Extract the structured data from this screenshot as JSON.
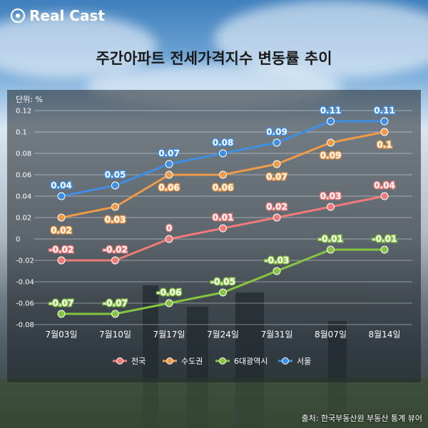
{
  "brand": {
    "name": "Real Cast"
  },
  "colors": {
    "전국": "#ef7a7a",
    "수도권": "#ee9a48",
    "6대광역시": "#86c53f",
    "서울": "#3f8ee6"
  },
  "chart_data": {
    "type": "line",
    "title": "주간아파트 전세가격지수 변동률 추이",
    "unit_label": "단위: %",
    "source": "출처: 한국부동산원 부동산 통계 뷰어",
    "categories": [
      "7월03일",
      "7월10일",
      "7월17일",
      "7월24일",
      "7월31일",
      "8월07일",
      "8월14일"
    ],
    "ylim": [
      -0.08,
      0.12
    ],
    "yticks": [
      "0.12",
      "0.1",
      "0.08",
      "0.06",
      "0.04",
      "0.02",
      "0",
      "-0.02",
      "-0.04",
      "-0.06",
      "-0.08"
    ],
    "ytick_values": [
      0.12,
      0.1,
      0.08,
      0.06,
      0.04,
      0.02,
      0,
      -0.02,
      -0.04,
      -0.06,
      -0.08
    ],
    "legend": [
      "전국",
      "수도권",
      "6대광역시",
      "서울"
    ],
    "series": [
      {
        "name": "전국",
        "values": [
          -0.02,
          -0.02,
          0,
          0.01,
          0.02,
          0.03,
          0.04
        ],
        "labels": [
          "-0.02",
          "-0.02",
          "0",
          "0.01",
          "0.02",
          "0.03",
          "0.04"
        ],
        "label_pos": "above"
      },
      {
        "name": "수도권",
        "values": [
          0.02,
          0.03,
          0.06,
          0.06,
          0.07,
          0.09,
          0.1
        ],
        "labels": [
          "0.02",
          "0.03",
          "0.06",
          "0.06",
          "0.07",
          "0.09",
          "0.1"
        ],
        "label_pos": "below"
      },
      {
        "name": "6대광역시",
        "values": [
          -0.07,
          -0.07,
          -0.06,
          -0.05,
          -0.03,
          -0.01,
          -0.01
        ],
        "labels": [
          "-0.07",
          "-0.07",
          "-0.06",
          "-0.05",
          "-0.03",
          "-0.01",
          "-0.01"
        ],
        "label_pos": "above"
      },
      {
        "name": "서울",
        "values": [
          0.04,
          0.05,
          0.07,
          0.08,
          0.09,
          0.11,
          0.11
        ],
        "labels": [
          "0.04",
          "0.05",
          "0.07",
          "0.08",
          "0.09",
          "0.11",
          "0.11"
        ],
        "label_pos": "above"
      }
    ]
  }
}
